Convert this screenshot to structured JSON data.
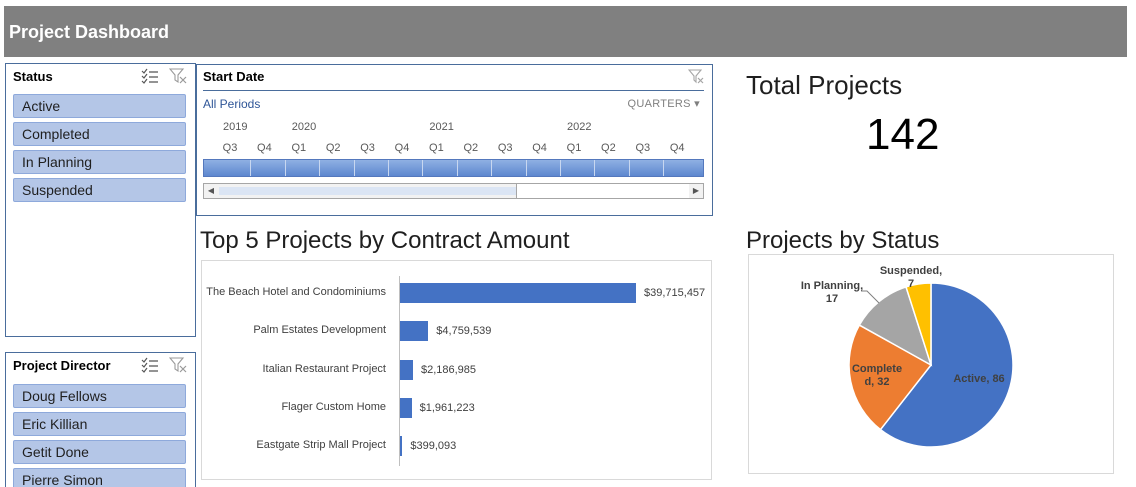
{
  "header": {
    "title": "Project Dashboard"
  },
  "status_slicer": {
    "title": "Status",
    "items": [
      {
        "label": "Active"
      },
      {
        "label": "Completed"
      },
      {
        "label": "In Planning"
      },
      {
        "label": "Suspended"
      }
    ]
  },
  "director_slicer": {
    "title": "Project Director",
    "items": [
      {
        "label": "Doug Fellows"
      },
      {
        "label": "Eric Killian"
      },
      {
        "label": "Getit Done"
      },
      {
        "label": "Pierre Simon"
      }
    ]
  },
  "timeline": {
    "title": "Start Date",
    "periods_label": "All Periods",
    "level_label": "QUARTERS",
    "years": [
      "2019",
      "2020",
      "2021",
      "2022"
    ],
    "quarters": [
      "Q3",
      "Q4",
      "Q1",
      "Q2",
      "Q3",
      "Q4",
      "Q1",
      "Q2",
      "Q3",
      "Q4",
      "Q1",
      "Q2",
      "Q3",
      "Q4"
    ]
  },
  "kpi": {
    "label": "Total Projects",
    "value": "142"
  },
  "bar_section": {
    "title": "Top 5 Projects by Contract Amount"
  },
  "pie_section": {
    "title": "Projects by Status"
  },
  "chart_data": [
    {
      "type": "bar",
      "orientation": "horizontal",
      "categories": [
        "The Beach Hotel and Condominiums",
        "Palm Estates Development",
        "Italian Restaurant Project",
        "Flager Custom Home",
        "Eastgate Strip Mall Project"
      ],
      "values": [
        39715457,
        4759539,
        2186985,
        1961223,
        399093
      ],
      "value_labels": [
        "$39,715,457",
        "$4,759,539",
        "$2,186,985",
        "$1,961,223",
        "$399,093"
      ],
      "title": "",
      "xlabel": "",
      "ylabel": "",
      "xlim": [
        0,
        39715457
      ],
      "grid": false,
      "color": "#4472c4"
    },
    {
      "type": "pie",
      "categories": [
        "Active",
        "Completed",
        "In Planning",
        "Suspended"
      ],
      "values": [
        86,
        32,
        17,
        7
      ],
      "labels": [
        "Active, 86",
        "Complete\nd, 32",
        "In Planning,\n17",
        "Suspended,\n7"
      ],
      "colors": [
        "#4472c4",
        "#ed7d31",
        "#a5a5a5",
        "#ffc000"
      ],
      "title": ""
    }
  ],
  "colors": {
    "header_bg": "#808080",
    "slicer_item_bg": "#b4c6e7",
    "slicer_border": "#4a6d9c",
    "accent": "#4472c4"
  }
}
